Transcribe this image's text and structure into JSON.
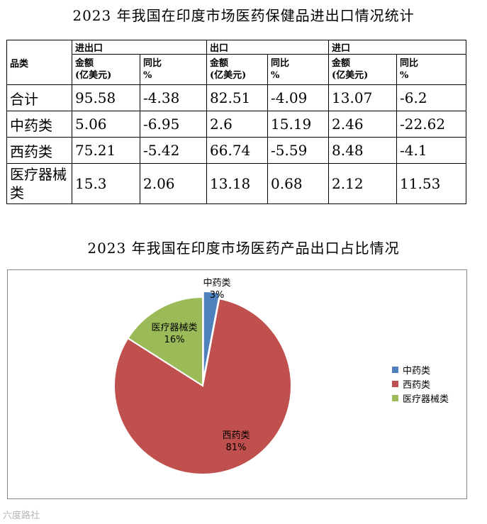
{
  "table": {
    "title": "2023 年我国在印度市场医药保健品进出口情况统计",
    "category_header": "品类",
    "groups": [
      "进出口",
      "出口",
      "进口"
    ],
    "sub_headers": {
      "amount_line1": "金额",
      "amount_line2": "(亿美元)",
      "yoy_line1": "同比",
      "yoy_line2": "%"
    },
    "rows": [
      {
        "name": "合计",
        "values": [
          "95.58",
          "-4.38",
          "82.51",
          "-4.09",
          "13.07",
          "-6.2"
        ]
      },
      {
        "name": "中药类",
        "values": [
          "5.06",
          "-6.95",
          "2.6",
          "15.19",
          "2.46",
          "-22.62"
        ]
      },
      {
        "name": "西药类",
        "values": [
          "75.21",
          "-5.42",
          "66.74",
          "-5.59",
          "8.48",
          "-4.1"
        ]
      },
      {
        "name": "医疗器械类",
        "values": [
          "15.3",
          "2.06",
          "13.18",
          "0.68",
          "2.12",
          "11.53"
        ]
      }
    ]
  },
  "chart_data": {
    "type": "pie",
    "title": "2023 年我国在印度市场医药产品出口占比情况",
    "slices": [
      {
        "label": "中药类",
        "value": 3,
        "value_label": "3%",
        "color": "#4f81bd"
      },
      {
        "label": "西药类",
        "value": 81,
        "value_label": "81%",
        "color": "#c0504d"
      },
      {
        "label": "医疗器械类",
        "value": 16,
        "value_label": "16%",
        "color": "#9bbb59"
      }
    ],
    "legend_position": "right"
  },
  "watermark": "六度路社"
}
